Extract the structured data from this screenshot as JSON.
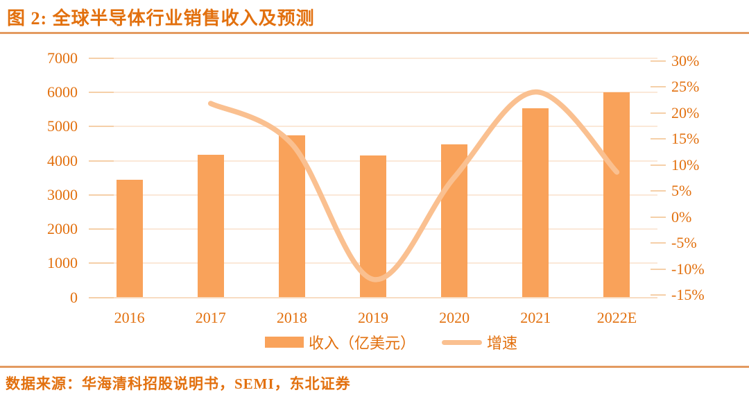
{
  "figure": {
    "title": "图 2:  全球半导体行业销售收入及预测"
  },
  "chart_data": {
    "type": "bar",
    "subtype": "combo-bar-line",
    "categories": [
      "2016",
      "2017",
      "2018",
      "2019",
      "2020",
      "2021",
      "2022E"
    ],
    "series": [
      {
        "name": "收入（亿美元）",
        "type": "bar",
        "axis": "left",
        "values": [
          3450,
          4180,
          4750,
          4160,
          4480,
          5530,
          6000
        ]
      },
      {
        "name": "增速",
        "type": "line",
        "axis": "right",
        "unit": "%",
        "values": [
          null,
          21.8,
          14,
          -12,
          7.6,
          24,
          8.6
        ]
      }
    ],
    "title": "全球半导体行业销售收入及预测",
    "xlabel": "",
    "ylabel_left": "收入（亿美元）",
    "ylabel_right": "增速",
    "left_axis": {
      "min": 0,
      "max": 7000,
      "step": 1000,
      "tick_labels": [
        "7000",
        "6000",
        "5000",
        "4000",
        "3000",
        "2000",
        "1000",
        "0"
      ]
    },
    "right_axis": {
      "min": -15,
      "max": 30,
      "step": 5,
      "tick_labels": [
        "30%",
        "25%",
        "20%",
        "15%",
        "10%",
        "5%",
        "0%",
        "-5%",
        "-10%",
        "-15%"
      ]
    },
    "grid": true,
    "legend_position": "bottom"
  },
  "footer": {
    "source": "数据来源：华海清科招股说明书，SEMI，东北证券"
  },
  "colors": {
    "accent_text": "#E2700E",
    "bar_fill": "#F9A25A",
    "line_stroke": "#FAC090",
    "gridline": "#FBE8D8",
    "tick": "#F5CFA8",
    "axis_line": "#F8DCC2",
    "rule": "#E39A60",
    "background": "#FFFFFF"
  }
}
